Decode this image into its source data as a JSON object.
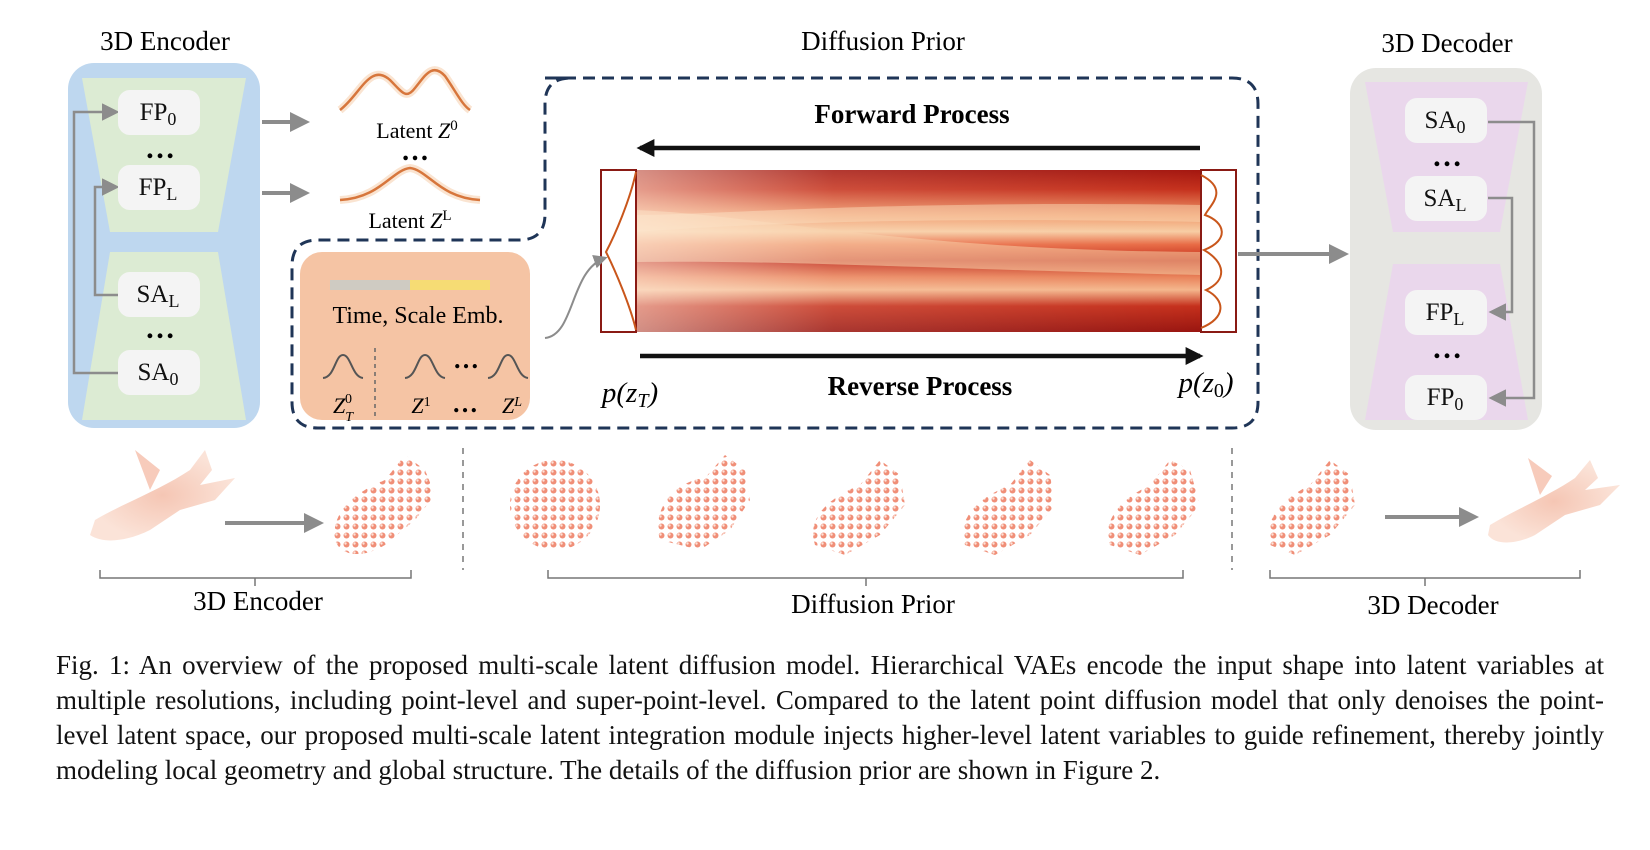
{
  "encoder": {
    "title": "3D Encoder",
    "blocks": [
      "FP",
      "FP",
      "SA",
      "SA"
    ],
    "subscripts": [
      "0",
      "L",
      "L",
      "0"
    ],
    "dots": "…"
  },
  "latents": {
    "z0_label": "Latent ",
    "z0_var": "Z",
    "z0_sup": "0",
    "dots": "…",
    "zl_label": "Latent ",
    "zl_var": "Z",
    "zl_sup": "L"
  },
  "prior": {
    "title": "Diffusion Prior",
    "forward": "Forward Process",
    "reverse": "Reverse Process",
    "p_zt": "p(z",
    "p_zt_sub": "T",
    "p_z0": "p(z",
    "p_z0_sub": "0",
    "close_paren": ")"
  },
  "embedding": {
    "label": "Time, Scale Emb.",
    "z": "Z",
    "zt_sub": "T",
    "zt_sup": "0",
    "z1_sup": "1",
    "zl_sup": "L",
    "dots": "…"
  },
  "decoder": {
    "title": "3D Decoder",
    "blocks": [
      "SA",
      "SA",
      "FP",
      "FP"
    ],
    "subscripts": [
      "0",
      "L",
      "L",
      "0"
    ],
    "dots": "…"
  },
  "bottom": {
    "encoder_label": "3D Encoder",
    "prior_label": "Diffusion Prior",
    "decoder_label": "3D Decoder"
  },
  "caption": "Fig. 1: An overview of the proposed multi-scale latent diffusion model. Hierarchical VAEs encode the input shape into latent variables at multiple resolutions, including point-level and super-point-level. Compared to the latent point diffusion model that only denoises the point-level latent space, our proposed multi-scale latent integration module injects higher-level latent variables to guide refinement, thereby jointly modeling local geometry and global structure. The details of the diffusion prior are shown in Figure 2.",
  "colors": {
    "encoder_bg": "#bed7ef",
    "encoder_trap": "#dcebd3",
    "decoder_bg": "#e6e6e2",
    "decoder_trap": "#ead7ec",
    "emb_bg": "#f5c4a4",
    "dashed": "#1f3557",
    "arrow_gray": "#8c8c8c",
    "heat_dark": "#a0140e",
    "heat_light": "#f7cfa2"
  }
}
